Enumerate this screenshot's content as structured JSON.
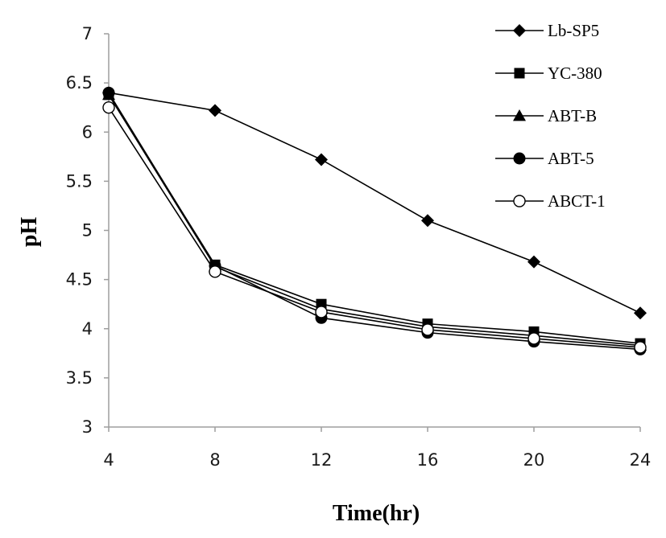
{
  "chart_data": {
    "type": "line",
    "xlabel": "Time(hr)",
    "ylabel": "pH",
    "x": [
      4,
      8,
      12,
      16,
      20,
      24
    ],
    "x_tick_labels": [
      "4",
      "8",
      "12",
      "16",
      "20",
      "24"
    ],
    "ylim": [
      3,
      7
    ],
    "y_tick_labels": [
      "3",
      "3.5",
      "4",
      "4.5",
      "5",
      "5.5",
      "6",
      "6.5",
      "7"
    ],
    "grid": false,
    "legend_position": "top-right",
    "series": [
      {
        "name": "Lb-SP5",
        "marker": "diamond",
        "values": [
          6.4,
          6.22,
          5.72,
          5.1,
          4.68,
          4.16
        ]
      },
      {
        "name": "YC-380",
        "marker": "square",
        "values": [
          6.38,
          4.65,
          4.25,
          4.05,
          3.97,
          3.85
        ]
      },
      {
        "name": "ABT-B",
        "marker": "triangle",
        "values": [
          6.38,
          4.63,
          4.2,
          4.02,
          3.93,
          3.83
        ]
      },
      {
        "name": "ABT-5",
        "marker": "circle-filled",
        "values": [
          6.4,
          4.64,
          4.11,
          3.96,
          3.87,
          3.79
        ]
      },
      {
        "name": "ABCT-1",
        "marker": "circle-open",
        "values": [
          6.25,
          4.58,
          4.17,
          3.99,
          3.9,
          3.81
        ]
      }
    ],
    "line_color": "#000000",
    "axis_color": "#9e9e9e"
  }
}
